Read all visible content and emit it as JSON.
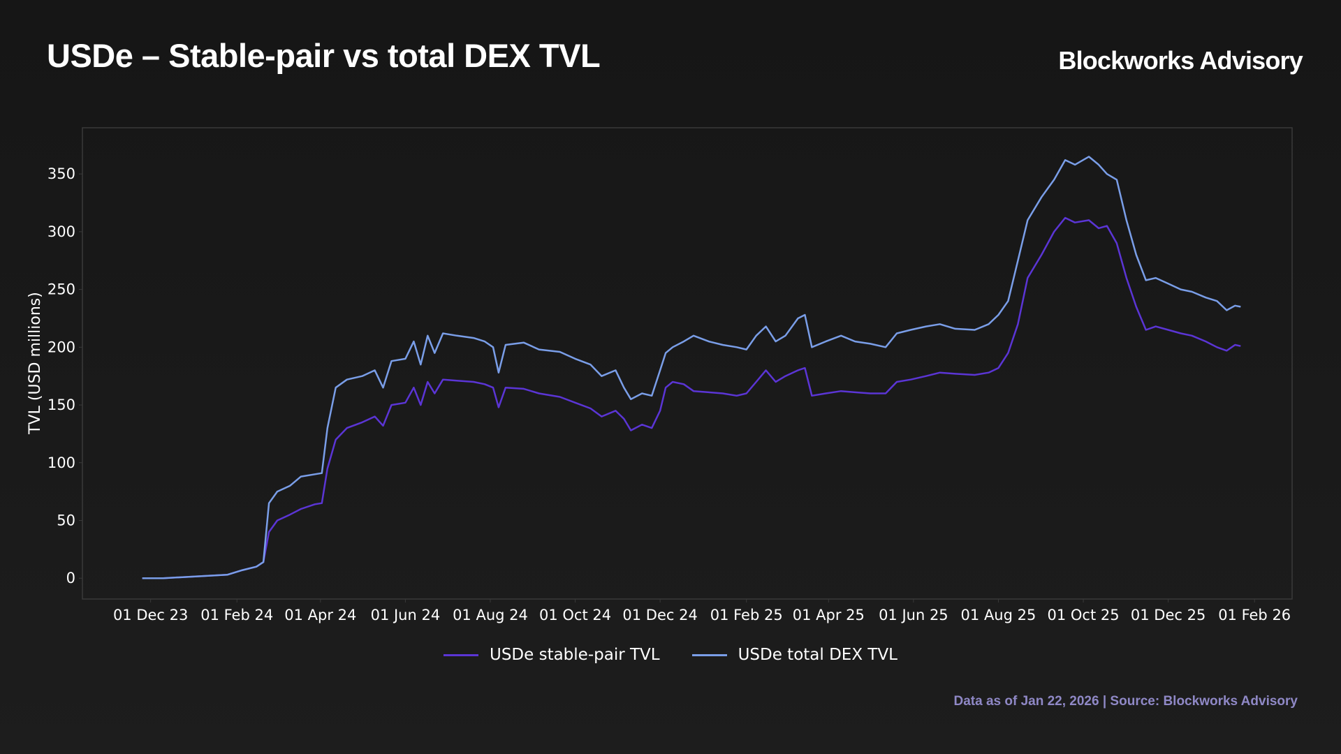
{
  "header": {
    "title": "USDe – Stable-pair vs total DEX TVL",
    "brand": "Blockworks Advisory"
  },
  "footer": {
    "source": "Data as of Jan 22, 2026 | Source: Blockworks Advisory"
  },
  "colors": {
    "stable_pair": "#5b35d5",
    "total_dex": "#7a9ee8",
    "plot_border": "#3a3a3a",
    "background": "#1a1a1a"
  },
  "chart_data": {
    "type": "line",
    "title": "USDe – Stable-pair vs total DEX TVL",
    "xlabel": "",
    "ylabel": "TVL (USD millions)",
    "ylim": [
      -18,
      390
    ],
    "xlim": [
      "2023-10-13",
      "2026-02-28"
    ],
    "grid": false,
    "legend_position": "bottom-center",
    "x_ticks": [
      "2023-12-01",
      "2024-02-01",
      "2024-04-01",
      "2024-06-01",
      "2024-08-01",
      "2024-10-01",
      "2024-12-01",
      "2025-02-01",
      "2025-04-01",
      "2025-06-01",
      "2025-08-01",
      "2025-10-01",
      "2025-12-01",
      "2026-02-01"
    ],
    "x_tick_labels": [
      "01 Dec 23",
      "01 Feb 24",
      "01 Apr 24",
      "01 Jun 24",
      "01 Aug 24",
      "01 Oct 24",
      "01 Dec 24",
      "01 Feb 25",
      "01 Apr 25",
      "01 Jun 25",
      "01 Aug 25",
      "01 Oct 25",
      "01 Dec 25",
      "01 Feb 26"
    ],
    "y_ticks": [
      0,
      50,
      100,
      150,
      200,
      250,
      300,
      350
    ],
    "series": [
      {
        "name": "USDe stable-pair TVL",
        "color": "#5b35d5",
        "points": [
          [
            "2023-11-25",
            0
          ],
          [
            "2023-12-10",
            0
          ],
          [
            "2023-12-25",
            1
          ],
          [
            "2024-01-10",
            2
          ],
          [
            "2024-01-25",
            3
          ],
          [
            "2024-02-05",
            7
          ],
          [
            "2024-02-15",
            10
          ],
          [
            "2024-02-20",
            14
          ],
          [
            "2024-02-24",
            40
          ],
          [
            "2024-03-01",
            50
          ],
          [
            "2024-03-10",
            55
          ],
          [
            "2024-03-18",
            60
          ],
          [
            "2024-03-28",
            64
          ],
          [
            "2024-04-02",
            65
          ],
          [
            "2024-04-06",
            95
          ],
          [
            "2024-04-12",
            120
          ],
          [
            "2024-04-20",
            130
          ],
          [
            "2024-05-01",
            135
          ],
          [
            "2024-05-10",
            140
          ],
          [
            "2024-05-16",
            132
          ],
          [
            "2024-05-22",
            150
          ],
          [
            "2024-06-01",
            152
          ],
          [
            "2024-06-07",
            165
          ],
          [
            "2024-06-12",
            150
          ],
          [
            "2024-06-17",
            170
          ],
          [
            "2024-06-22",
            160
          ],
          [
            "2024-06-28",
            172
          ],
          [
            "2024-07-08",
            171
          ],
          [
            "2024-07-20",
            170
          ],
          [
            "2024-07-28",
            168
          ],
          [
            "2024-08-03",
            165
          ],
          [
            "2024-08-07",
            148
          ],
          [
            "2024-08-12",
            165
          ],
          [
            "2024-08-25",
            164
          ],
          [
            "2024-09-05",
            160
          ],
          [
            "2024-09-20",
            157
          ],
          [
            "2024-10-01",
            152
          ],
          [
            "2024-10-12",
            147
          ],
          [
            "2024-10-20",
            140
          ],
          [
            "2024-10-30",
            145
          ],
          [
            "2024-11-05",
            138
          ],
          [
            "2024-11-10",
            128
          ],
          [
            "2024-11-18",
            133
          ],
          [
            "2024-11-25",
            130
          ],
          [
            "2024-12-01",
            145
          ],
          [
            "2024-12-05",
            165
          ],
          [
            "2024-12-10",
            170
          ],
          [
            "2024-12-18",
            168
          ],
          [
            "2024-12-25",
            162
          ],
          [
            "2025-01-05",
            161
          ],
          [
            "2025-01-15",
            160
          ],
          [
            "2025-01-25",
            158
          ],
          [
            "2025-02-01",
            160
          ],
          [
            "2025-02-08",
            170
          ],
          [
            "2025-02-15",
            180
          ],
          [
            "2025-02-22",
            170
          ],
          [
            "2025-03-01",
            175
          ],
          [
            "2025-03-10",
            180
          ],
          [
            "2025-03-15",
            182
          ],
          [
            "2025-03-20",
            158
          ],
          [
            "2025-03-30",
            160
          ],
          [
            "2025-04-10",
            162
          ],
          [
            "2025-04-20",
            161
          ],
          [
            "2025-05-01",
            160
          ],
          [
            "2025-05-12",
            160
          ],
          [
            "2025-05-20",
            170
          ],
          [
            "2025-05-30",
            172
          ],
          [
            "2025-06-10",
            175
          ],
          [
            "2025-06-20",
            178
          ],
          [
            "2025-07-01",
            177
          ],
          [
            "2025-07-15",
            176
          ],
          [
            "2025-07-25",
            178
          ],
          [
            "2025-08-01",
            182
          ],
          [
            "2025-08-08",
            195
          ],
          [
            "2025-08-15",
            220
          ],
          [
            "2025-08-22",
            260
          ],
          [
            "2025-09-01",
            280
          ],
          [
            "2025-09-10",
            300
          ],
          [
            "2025-09-18",
            312
          ],
          [
            "2025-09-25",
            308
          ],
          [
            "2025-10-05",
            310
          ],
          [
            "2025-10-12",
            303
          ],
          [
            "2025-10-18",
            305
          ],
          [
            "2025-10-25",
            290
          ],
          [
            "2025-11-01",
            260
          ],
          [
            "2025-11-08",
            235
          ],
          [
            "2025-11-15",
            215
          ],
          [
            "2025-11-22",
            218
          ],
          [
            "2025-12-01",
            215
          ],
          [
            "2025-12-10",
            212
          ],
          [
            "2025-12-18",
            210
          ],
          [
            "2025-12-28",
            205
          ],
          [
            "2026-01-05",
            200
          ],
          [
            "2026-01-12",
            197
          ],
          [
            "2026-01-18",
            202
          ],
          [
            "2026-01-22",
            201
          ]
        ]
      },
      {
        "name": "USDe total DEX TVL",
        "color": "#7a9ee8",
        "points": [
          [
            "2023-11-25",
            0
          ],
          [
            "2023-12-10",
            0
          ],
          [
            "2023-12-25",
            1
          ],
          [
            "2024-01-10",
            2
          ],
          [
            "2024-01-25",
            3
          ],
          [
            "2024-02-05",
            7
          ],
          [
            "2024-02-15",
            10
          ],
          [
            "2024-02-20",
            14
          ],
          [
            "2024-02-24",
            65
          ],
          [
            "2024-03-01",
            75
          ],
          [
            "2024-03-10",
            80
          ],
          [
            "2024-03-18",
            88
          ],
          [
            "2024-03-28",
            90
          ],
          [
            "2024-04-02",
            91
          ],
          [
            "2024-04-06",
            130
          ],
          [
            "2024-04-12",
            165
          ],
          [
            "2024-04-20",
            172
          ],
          [
            "2024-05-01",
            175
          ],
          [
            "2024-05-10",
            180
          ],
          [
            "2024-05-16",
            165
          ],
          [
            "2024-05-22",
            188
          ],
          [
            "2024-06-01",
            190
          ],
          [
            "2024-06-07",
            205
          ],
          [
            "2024-06-12",
            185
          ],
          [
            "2024-06-17",
            210
          ],
          [
            "2024-06-22",
            195
          ],
          [
            "2024-06-28",
            212
          ],
          [
            "2024-07-08",
            210
          ],
          [
            "2024-07-20",
            208
          ],
          [
            "2024-07-28",
            205
          ],
          [
            "2024-08-03",
            200
          ],
          [
            "2024-08-07",
            178
          ],
          [
            "2024-08-12",
            202
          ],
          [
            "2024-08-25",
            204
          ],
          [
            "2024-09-05",
            198
          ],
          [
            "2024-09-20",
            196
          ],
          [
            "2024-10-01",
            190
          ],
          [
            "2024-10-12",
            185
          ],
          [
            "2024-10-20",
            175
          ],
          [
            "2024-10-30",
            180
          ],
          [
            "2024-11-05",
            165
          ],
          [
            "2024-11-10",
            155
          ],
          [
            "2024-11-18",
            160
          ],
          [
            "2024-11-25",
            158
          ],
          [
            "2024-12-01",
            180
          ],
          [
            "2024-12-05",
            195
          ],
          [
            "2024-12-10",
            200
          ],
          [
            "2024-12-18",
            205
          ],
          [
            "2024-12-25",
            210
          ],
          [
            "2025-01-05",
            205
          ],
          [
            "2025-01-15",
            202
          ],
          [
            "2025-01-25",
            200
          ],
          [
            "2025-02-01",
            198
          ],
          [
            "2025-02-08",
            210
          ],
          [
            "2025-02-15",
            218
          ],
          [
            "2025-02-22",
            205
          ],
          [
            "2025-03-01",
            210
          ],
          [
            "2025-03-10",
            225
          ],
          [
            "2025-03-15",
            228
          ],
          [
            "2025-03-20",
            200
          ],
          [
            "2025-03-30",
            205
          ],
          [
            "2025-04-10",
            210
          ],
          [
            "2025-04-20",
            205
          ],
          [
            "2025-05-01",
            203
          ],
          [
            "2025-05-12",
            200
          ],
          [
            "2025-05-20",
            212
          ],
          [
            "2025-05-30",
            215
          ],
          [
            "2025-06-10",
            218
          ],
          [
            "2025-06-20",
            220
          ],
          [
            "2025-07-01",
            216
          ],
          [
            "2025-07-15",
            215
          ],
          [
            "2025-07-25",
            220
          ],
          [
            "2025-08-01",
            228
          ],
          [
            "2025-08-08",
            240
          ],
          [
            "2025-08-15",
            275
          ],
          [
            "2025-08-22",
            310
          ],
          [
            "2025-09-01",
            330
          ],
          [
            "2025-09-10",
            345
          ],
          [
            "2025-09-18",
            362
          ],
          [
            "2025-09-25",
            358
          ],
          [
            "2025-10-05",
            365
          ],
          [
            "2025-10-12",
            358
          ],
          [
            "2025-10-18",
            350
          ],
          [
            "2025-10-25",
            345
          ],
          [
            "2025-11-01",
            310
          ],
          [
            "2025-11-08",
            280
          ],
          [
            "2025-11-15",
            258
          ],
          [
            "2025-11-22",
            260
          ],
          [
            "2025-12-01",
            255
          ],
          [
            "2025-12-10",
            250
          ],
          [
            "2025-12-18",
            248
          ],
          [
            "2025-12-28",
            243
          ],
          [
            "2026-01-05",
            240
          ],
          [
            "2026-01-12",
            232
          ],
          [
            "2026-01-18",
            236
          ],
          [
            "2026-01-22",
            235
          ]
        ]
      }
    ]
  }
}
